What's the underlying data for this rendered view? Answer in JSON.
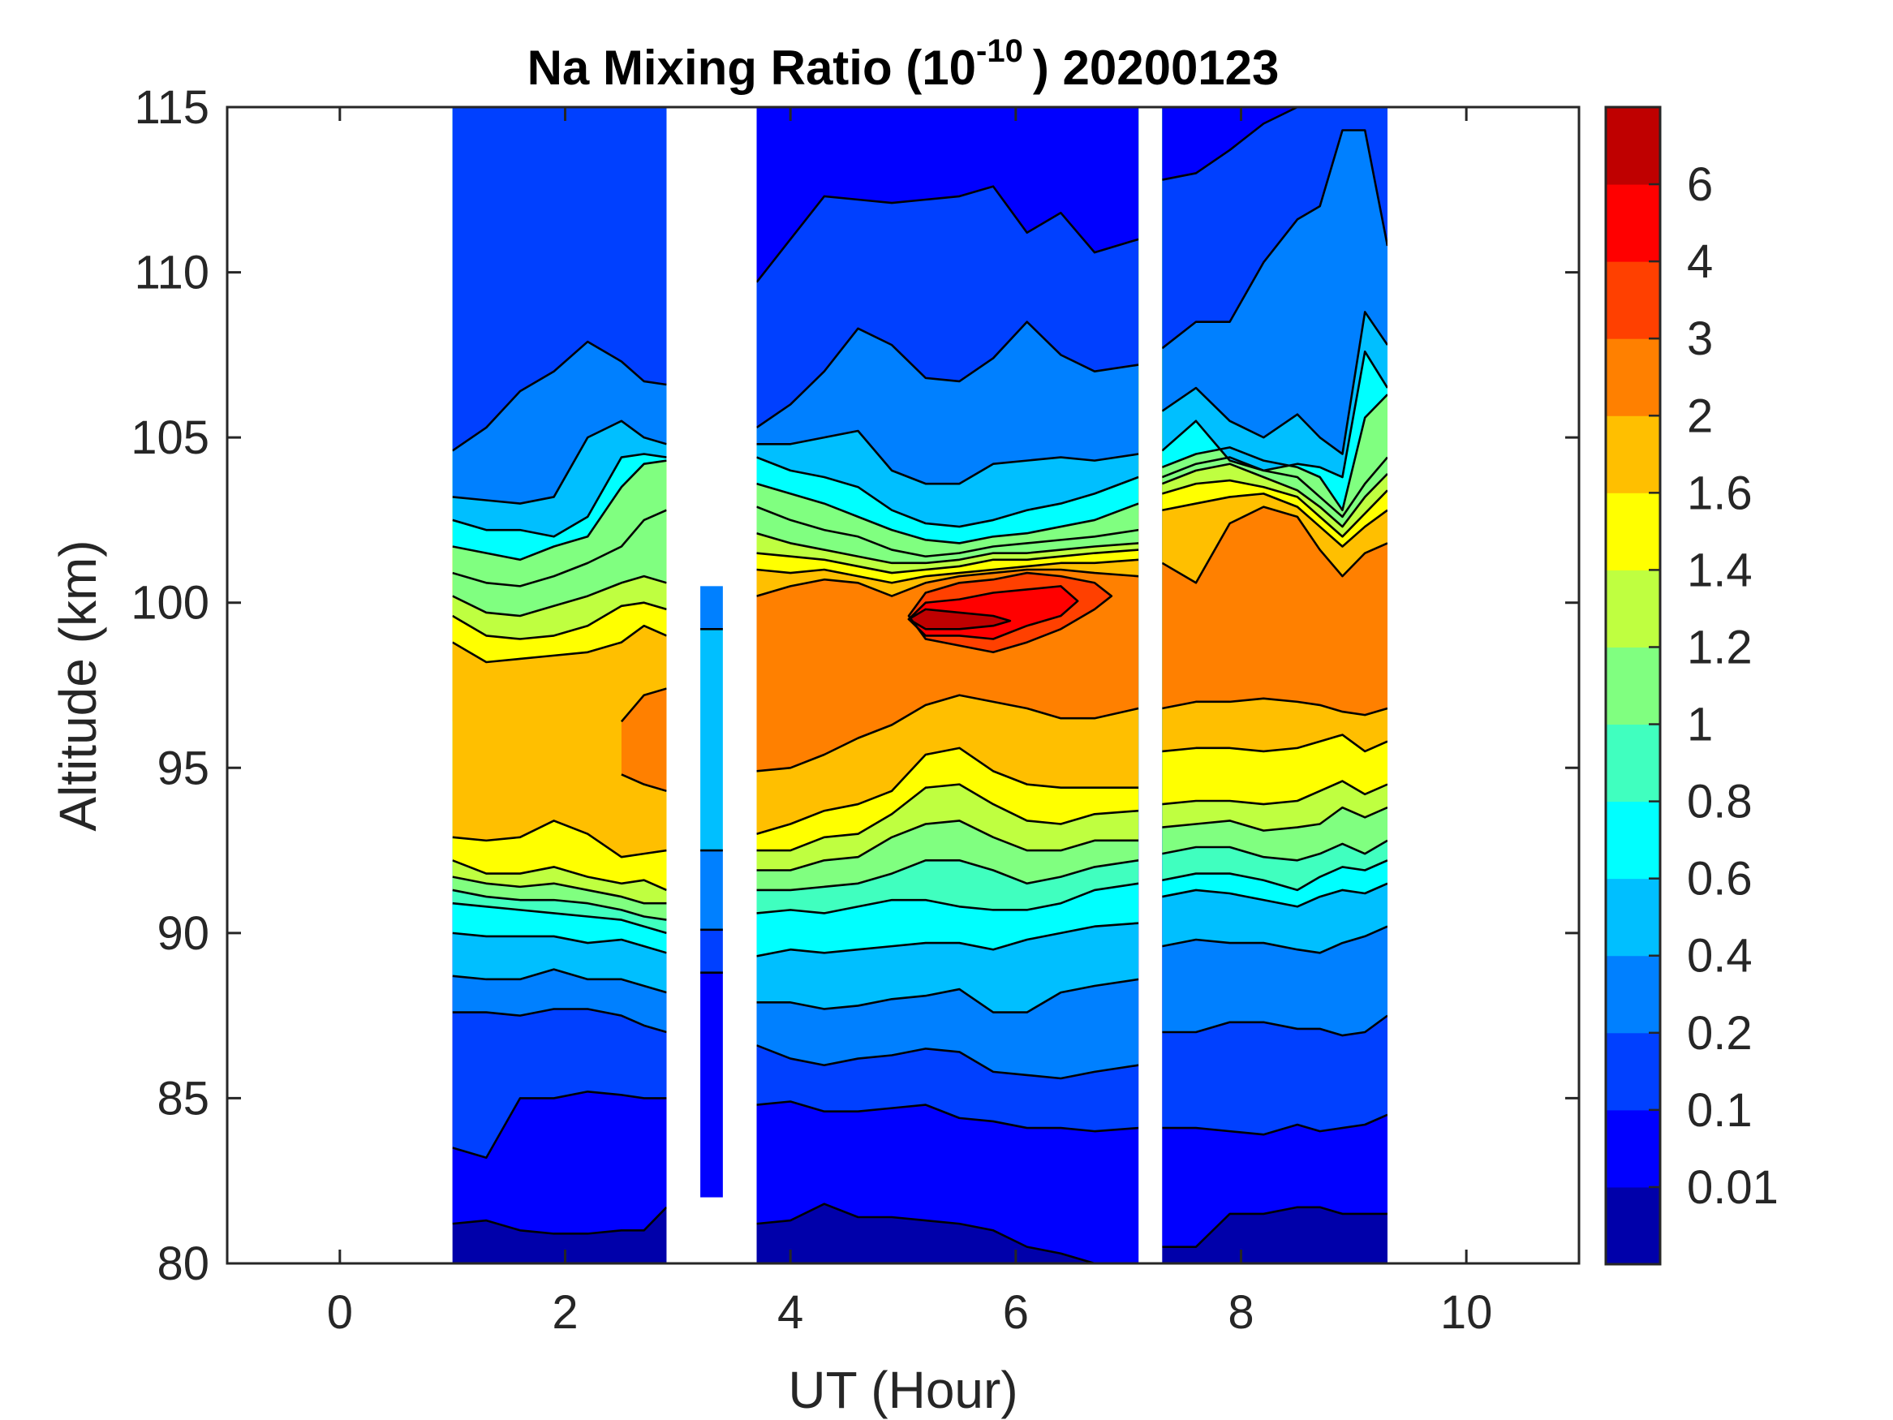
{
  "chart_data": {
    "type": "heatmap",
    "subtype": "filled-contour",
    "title": "Na Mixing Ratio (10",
    "title_exponent": "-10",
    "title_suffix": ") 20200123",
    "xlabel": "UT (Hour)",
    "ylabel": "Altitude (km)",
    "xlim": [
      -1,
      11
    ],
    "ylim": [
      80,
      115
    ],
    "xticks": [
      0,
      2,
      4,
      6,
      8,
      10
    ],
    "xtick_labels": [
      "0",
      "2",
      "4",
      "6",
      "8",
      "10"
    ],
    "yticks": [
      80,
      85,
      90,
      95,
      100,
      105,
      110,
      115
    ],
    "ytick_labels": [
      "80",
      "85",
      "90",
      "95",
      "100",
      "105",
      "110",
      "115"
    ],
    "colorbar": {
      "levels": [
        0,
        0.01,
        0.1,
        0.2,
        0.4,
        0.6,
        0.8,
        1,
        1.2,
        1.4,
        1.6,
        2,
        3,
        4,
        6,
        8
      ],
      "tick_labels": [
        "0.01",
        "0.1",
        "0.2",
        "0.4",
        "0.6",
        "0.8",
        "1",
        "1.2",
        "1.4",
        "1.6",
        "2",
        "3",
        "4",
        "6"
      ],
      "colors": [
        "#0000aa",
        "#0000ff",
        "#0040ff",
        "#0080ff",
        "#00bfff",
        "#00ffff",
        "#40ffbf",
        "#80ff80",
        "#bfff40",
        "#ffff00",
        "#ffbf00",
        "#ff8000",
        "#ff4000",
        "#ff0000",
        "#bf0000"
      ],
      "location": "right"
    },
    "contour_line_color": "#000000",
    "blocks": [
      {
        "name": "block-1",
        "t_start": 1.0,
        "t_end": 2.9,
        "times": [
          1.0,
          1.3,
          1.6,
          1.9,
          2.2,
          2.5,
          2.7,
          2.9
        ],
        "peak_alt": [
          97.0,
          96.5,
          96.5,
          96.5,
          96.0,
          96.0,
          96.0,
          96.2
        ],
        "peak_value": [
          1.9,
          1.95,
          1.95,
          1.95,
          1.95,
          2.1,
          2.3,
          2.3
        ],
        "lower_edges_km": {
          "0.01": [
            81.2,
            81.3,
            81.0,
            80.9,
            80.9,
            81.0,
            81.0,
            81.7
          ],
          "0.1": [
            83.5,
            83.2,
            85.0,
            85.0,
            85.2,
            85.1,
            85.0,
            85.0
          ],
          "0.2": [
            87.6,
            87.6,
            87.5,
            87.7,
            87.7,
            87.5,
            87.2,
            87.0
          ],
          "0.4": [
            88.7,
            88.6,
            88.6,
            88.9,
            88.6,
            88.6,
            88.4,
            88.2
          ],
          "0.6": [
            90.0,
            89.9,
            89.9,
            89.9,
            89.7,
            89.8,
            89.6,
            89.4
          ],
          "0.8": [
            90.9,
            90.8,
            90.7,
            90.6,
            90.5,
            90.4,
            90.2,
            90.0
          ],
          "1": [
            91.3,
            91.1,
            91.0,
            91.0,
            90.9,
            90.7,
            90.5,
            90.4
          ],
          "1.2": [
            91.7,
            91.5,
            91.4,
            91.5,
            91.3,
            91.1,
            90.9,
            90.9
          ],
          "1.4": [
            92.2,
            91.8,
            91.8,
            92.0,
            91.7,
            91.5,
            91.6,
            91.3
          ],
          "1.6": [
            92.9,
            92.8,
            92.9,
            93.4,
            93.0,
            92.3,
            92.4,
            92.5
          ],
          "2": [
            null,
            null,
            null,
            null,
            null,
            94.8,
            94.5,
            94.3
          ]
        },
        "upper_edges_km": {
          "2": [
            null,
            null,
            null,
            null,
            null,
            96.4,
            97.2,
            97.4
          ],
          "1.6": [
            98.8,
            98.2,
            98.3,
            98.4,
            98.5,
            98.8,
            99.3,
            99.0
          ],
          "1.4": [
            99.6,
            99.0,
            98.9,
            99.0,
            99.3,
            99.9,
            100.0,
            99.8
          ],
          "1.2": [
            100.2,
            99.7,
            99.6,
            99.9,
            100.2,
            100.6,
            100.8,
            100.6
          ],
          "1": [
            100.9,
            100.6,
            100.5,
            100.8,
            101.2,
            101.7,
            102.5,
            102.8
          ],
          "0.8": [
            101.7,
            101.5,
            101.3,
            101.7,
            102.0,
            103.5,
            104.2,
            104.3
          ],
          "0.6": [
            102.5,
            102.2,
            102.2,
            102.0,
            102.6,
            104.4,
            104.5,
            104.4
          ],
          "0.4": [
            103.2,
            103.1,
            103.0,
            103.2,
            105.0,
            105.5,
            105.0,
            104.8
          ],
          "0.2": [
            104.6,
            105.3,
            106.4,
            107.0,
            107.9,
            107.3,
            106.7,
            106.6
          ],
          "0.1": [
            null,
            null,
            null,
            null,
            null,
            null,
            null,
            null
          ]
        }
      },
      {
        "name": "block-2",
        "t_start": 3.7,
        "t_end": 7.09,
        "times": [
          3.7,
          4.0,
          4.3,
          4.6,
          4.9,
          5.2,
          5.5,
          5.8,
          6.1,
          6.4,
          6.7,
          7.09
        ],
        "peak_alt": [
          98.5,
          98.5,
          98.5,
          99.0,
          99.0,
          99.5,
          99.6,
          99.6,
          99.8,
          99.8,
          99.5,
          99.0
        ],
        "peak_value": [
          2.5,
          2.6,
          2.7,
          2.8,
          2.9,
          3.2,
          7.0,
          6.5,
          4.5,
          4.2,
          3.0,
          2.8
        ],
        "lower_edges_km": {
          "0.01": [
            81.2,
            81.3,
            81.8,
            81.4,
            81.4,
            81.3,
            81.2,
            81.0,
            80.5,
            80.3,
            80.0,
            80.0
          ],
          "0.1": [
            84.8,
            84.9,
            84.6,
            84.6,
            84.7,
            84.8,
            84.4,
            84.3,
            84.1,
            84.1,
            84.0,
            84.1
          ],
          "0.2": [
            86.6,
            86.2,
            86.0,
            86.2,
            86.3,
            86.5,
            86.4,
            85.8,
            85.7,
            85.6,
            85.8,
            86.0
          ],
          "0.4": [
            87.9,
            87.9,
            87.7,
            87.8,
            88.0,
            88.1,
            88.3,
            87.6,
            87.6,
            88.2,
            88.4,
            88.6
          ],
          "0.6": [
            89.3,
            89.5,
            89.4,
            89.5,
            89.6,
            89.7,
            89.7,
            89.5,
            89.8,
            90.0,
            90.2,
            90.3
          ],
          "0.8": [
            90.6,
            90.7,
            90.6,
            90.8,
            91.0,
            91.0,
            90.8,
            90.7,
            90.7,
            90.9,
            91.3,
            91.5
          ],
          "1": [
            91.3,
            91.3,
            91.4,
            91.5,
            91.8,
            92.2,
            92.2,
            91.9,
            91.5,
            91.7,
            92.0,
            92.2
          ],
          "1.2": [
            91.9,
            91.9,
            92.2,
            92.3,
            92.9,
            93.3,
            93.4,
            92.9,
            92.5,
            92.5,
            92.8,
            92.8
          ],
          "1.4": [
            92.5,
            92.5,
            92.9,
            93.0,
            93.6,
            94.4,
            94.5,
            93.9,
            93.4,
            93.3,
            93.6,
            93.7
          ],
          "1.6": [
            93.0,
            93.3,
            93.7,
            93.9,
            94.3,
            95.4,
            95.6,
            94.9,
            94.5,
            94.4,
            94.4,
            94.4
          ],
          "2": [
            94.9,
            95.0,
            95.4,
            95.9,
            96.3,
            96.9,
            97.2,
            97.0,
            96.8,
            96.5,
            96.5,
            96.8
          ],
          "3": [
            null,
            null,
            null,
            null,
            null,
            98.9,
            98.7,
            98.5,
            98.8,
            99.2,
            99.8,
            null
          ],
          "4": [
            null,
            null,
            null,
            null,
            null,
            99.0,
            99.0,
            98.9,
            99.3,
            99.6,
            null,
            null
          ],
          "6": [
            null,
            null,
            null,
            null,
            null,
            99.2,
            99.2,
            99.3,
            null,
            null,
            null,
            null
          ]
        },
        "upper_edges_km": {
          "6": [
            null,
            null,
            null,
            null,
            null,
            99.8,
            99.7,
            99.6,
            null,
            null,
            null,
            null
          ],
          "4": [
            null,
            null,
            null,
            null,
            null,
            100.0,
            100.1,
            100.3,
            100.4,
            100.5,
            null,
            null
          ],
          "3": [
            null,
            null,
            null,
            null,
            null,
            100.3,
            100.6,
            100.7,
            100.9,
            100.8,
            100.6,
            null
          ],
          "2": [
            100.2,
            100.5,
            100.7,
            100.6,
            100.2,
            100.6,
            100.8,
            100.9,
            101.0,
            101.0,
            100.9,
            100.8
          ],
          "1.6": [
            101.0,
            100.9,
            101.0,
            100.8,
            100.6,
            100.8,
            100.9,
            101.0,
            101.1,
            101.2,
            101.2,
            101.3
          ],
          "1.4": [
            101.5,
            101.4,
            101.3,
            101.1,
            100.9,
            101.0,
            101.1,
            101.3,
            101.3,
            101.4,
            101.5,
            101.6
          ],
          "1.2": [
            102.1,
            101.8,
            101.6,
            101.4,
            101.2,
            101.2,
            101.3,
            101.5,
            101.5,
            101.6,
            101.7,
            101.8
          ],
          "1": [
            102.9,
            102.5,
            102.2,
            102.0,
            101.6,
            101.4,
            101.5,
            101.7,
            101.8,
            101.9,
            102.0,
            102.2
          ],
          "0.8": [
            103.6,
            103.3,
            103.0,
            102.6,
            102.2,
            101.9,
            101.8,
            102.0,
            102.1,
            102.3,
            102.5,
            103.0
          ],
          "0.6": [
            104.4,
            104.0,
            103.8,
            103.5,
            102.8,
            102.4,
            102.3,
            102.5,
            102.8,
            103.0,
            103.3,
            103.8
          ],
          "0.4": [
            104.8,
            104.8,
            105.0,
            105.2,
            104.0,
            103.6,
            103.6,
            104.2,
            104.3,
            104.4,
            104.3,
            104.5
          ],
          "0.2": [
            105.3,
            106.0,
            107.0,
            108.3,
            107.8,
            106.8,
            106.7,
            107.4,
            108.5,
            107.5,
            107.0,
            107.2
          ],
          "0.1": [
            109.7,
            111.0,
            112.3,
            112.2,
            112.1,
            112.2,
            112.3,
            112.6,
            111.2,
            111.8,
            110.6,
            111.0
          ]
        }
      },
      {
        "name": "block-3",
        "t_start": 7.3,
        "t_end": 9.3,
        "times": [
          7.3,
          7.6,
          7.9,
          8.2,
          8.5,
          8.7,
          8.9,
          9.1,
          9.3
        ],
        "peak_alt": [
          99.0,
          99.0,
          99.0,
          99.2,
          99.0,
          99.0,
          98.9,
          99.0,
          99.0
        ],
        "peak_value": [
          2.3,
          2.6,
          2.8,
          2.8,
          2.7,
          2.6,
          2.4,
          2.6,
          2.7
        ],
        "lower_edges_km": {
          "0.01": [
            80.5,
            80.5,
            81.5,
            81.5,
            81.7,
            81.7,
            81.5,
            81.5,
            81.5
          ],
          "0.1": [
            84.1,
            84.1,
            84.0,
            83.9,
            84.2,
            84.0,
            84.1,
            84.2,
            84.5
          ],
          "0.2": [
            87.0,
            87.0,
            87.3,
            87.3,
            87.1,
            87.1,
            86.9,
            87.0,
            87.5
          ],
          "0.4": [
            89.6,
            89.8,
            89.7,
            89.7,
            89.5,
            89.4,
            89.7,
            89.9,
            90.2
          ],
          "0.6": [
            91.1,
            91.3,
            91.2,
            91.0,
            90.8,
            91.1,
            91.3,
            91.2,
            91.5
          ],
          "0.8": [
            91.6,
            91.8,
            91.8,
            91.6,
            91.3,
            91.7,
            92.0,
            91.9,
            92.2
          ],
          "1": [
            92.4,
            92.6,
            92.6,
            92.3,
            92.2,
            92.4,
            92.7,
            92.4,
            92.8
          ],
          "1.2": [
            93.2,
            93.3,
            93.4,
            93.1,
            93.2,
            93.3,
            93.8,
            93.5,
            93.8
          ],
          "1.4": [
            93.9,
            94.0,
            94.0,
            93.9,
            94.0,
            94.3,
            94.6,
            94.2,
            94.5
          ],
          "1.6": [
            95.5,
            95.6,
            95.6,
            95.5,
            95.6,
            95.8,
            96.0,
            95.5,
            95.8
          ],
          "2": [
            96.8,
            97.0,
            97.0,
            97.1,
            97.0,
            96.9,
            96.7,
            96.6,
            96.8
          ]
        },
        "upper_edges_km": {
          "2": [
            101.2,
            100.6,
            102.4,
            102.9,
            102.6,
            101.6,
            100.8,
            101.5,
            101.8
          ],
          "1.6": [
            102.8,
            103.0,
            103.2,
            103.3,
            102.9,
            102.3,
            101.7,
            102.3,
            102.8
          ],
          "1.4": [
            103.3,
            103.6,
            103.7,
            103.5,
            103.2,
            102.6,
            102.0,
            102.7,
            103.4
          ],
          "1.2": [
            103.6,
            104.0,
            104.2,
            103.8,
            103.4,
            102.9,
            102.3,
            103.2,
            103.9
          ],
          "1": [
            103.8,
            104.2,
            104.4,
            104.0,
            103.8,
            103.2,
            102.6,
            103.6,
            104.4
          ],
          "0.8": [
            104.1,
            104.5,
            104.7,
            104.3,
            104.1,
            103.8,
            102.8,
            105.6,
            106.3
          ],
          "0.6": [
            104.6,
            105.5,
            104.3,
            104.0,
            104.2,
            104.1,
            103.8,
            107.6,
            106.5
          ],
          "0.4": [
            105.8,
            106.5,
            105.5,
            105.0,
            105.7,
            105.0,
            104.5,
            108.8,
            107.8
          ],
          "0.2": [
            107.7,
            108.5,
            108.5,
            110.3,
            111.6,
            112.0,
            114.3,
            114.3,
            110.8
          ],
          "0.1": [
            112.8,
            113.0,
            113.7,
            114.5,
            115.0,
            115.0,
            115.0,
            115.0,
            115.0
          ]
        }
      }
    ],
    "narrow_column": {
      "t_start": 3.2,
      "t_end": 3.4,
      "segments": [
        {
          "alt_bottom": 82.0,
          "alt_top": 88.8,
          "level_range": "0.01-0.1"
        },
        {
          "alt_bottom": 88.8,
          "alt_top": 90.1,
          "level_range": "0.1-0.2"
        },
        {
          "alt_bottom": 90.1,
          "alt_top": 92.5,
          "level_range": "0.2-0.4"
        },
        {
          "alt_bottom": 92.5,
          "alt_top": 99.2,
          "level_range": "0.4-0.6"
        },
        {
          "alt_bottom": 99.2,
          "alt_top": 100.5,
          "level_range": "0.2-0.4"
        }
      ]
    }
  }
}
